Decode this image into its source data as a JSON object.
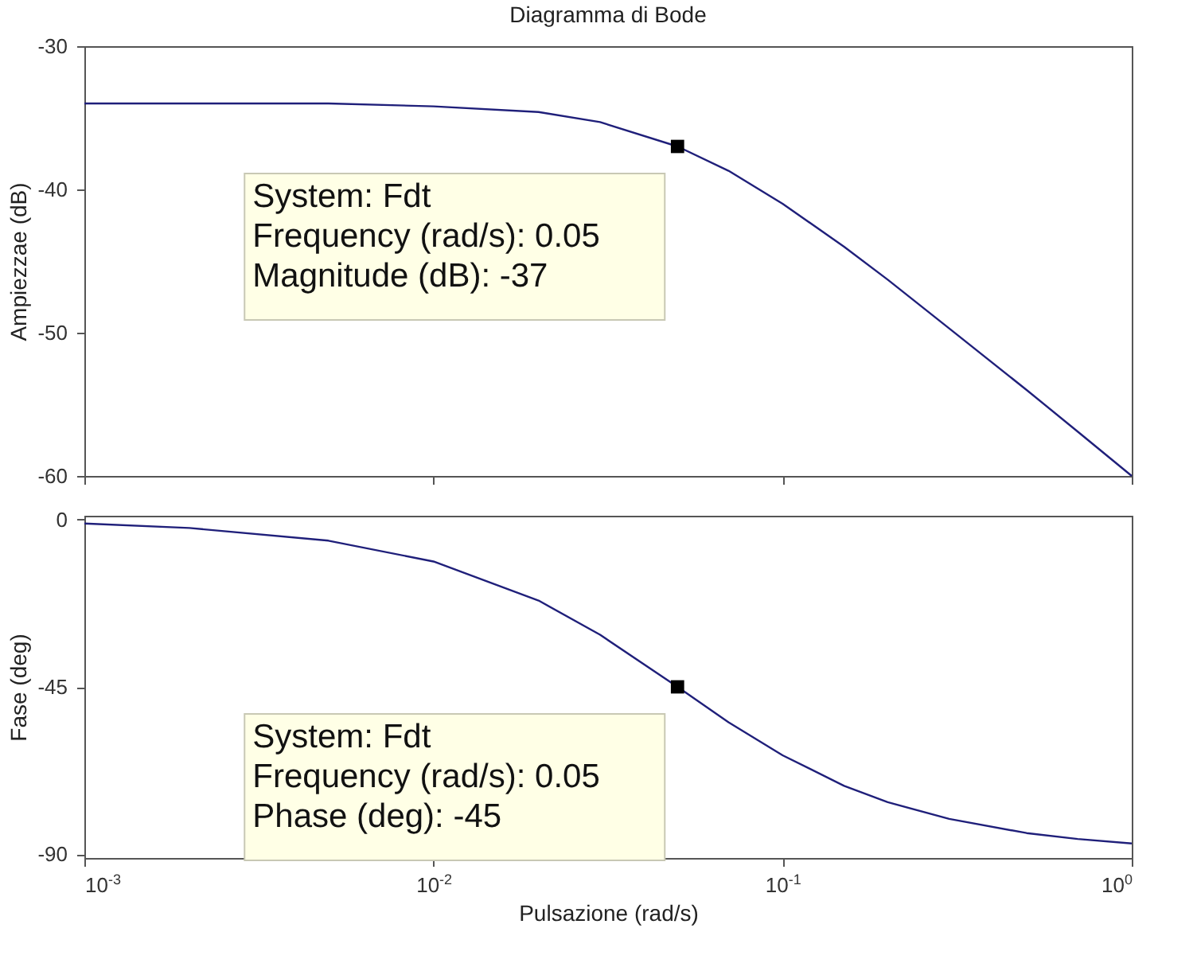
{
  "chart_data": [
    {
      "type": "line",
      "title": "Diagramma di Bode",
      "ylabel": "Ampiezzae (dB)",
      "log": "x",
      "grid": false,
      "marker": "none",
      "line_style": "solid",
      "tick_labels": "y",
      "x": [
        0.001,
        0.002,
        0.005,
        0.01,
        0.02,
        0.03,
        0.05,
        0.07,
        0.1,
        0.15,
        0.2,
        0.3,
        0.5,
        0.7,
        1
      ],
      "series": [
        {
          "color": "#1f1f7a",
          "values": [
            -34,
            -34,
            -34,
            -34.2,
            -34.6,
            -35.3,
            -37,
            -38.7,
            -41,
            -44,
            -46.3,
            -49.7,
            -54,
            -56.9,
            -60
          ]
        }
      ],
      "xlim": [
        0.001,
        1
      ],
      "xticks": [
        0.001,
        0.01,
        0.1,
        1
      ],
      "ylim": [
        -60,
        -30
      ],
      "yticks": [
        -60,
        -50,
        -40,
        -30
      ],
      "annotations": [
        {
          "text": "System: Fdt\nFrequency (rad/s): 0.05\nMagnitude (dB): -37",
          "x": 0.05,
          "y": -37
        }
      ]
    },
    {
      "type": "line",
      "xlabel": "Pulsazione  (rad/s)",
      "ylabel": "Fase (deg)",
      "log": "x",
      "grid": false,
      "marker": "none",
      "line_style": "solid",
      "x": [
        0.001,
        0.002,
        0.005,
        0.01,
        0.02,
        0.03,
        0.05,
        0.07,
        0.1,
        0.15,
        0.2,
        0.3,
        0.5,
        0.7,
        1
      ],
      "series": [
        {
          "color": "#1f1f7a",
          "values": [
            -1.1,
            -2.3,
            -5.7,
            -11.3,
            -21.8,
            -31,
            -45,
            -54.5,
            -63.4,
            -71.6,
            -76,
            -80.5,
            -84.3,
            -85.9,
            -87.1
          ]
        }
      ],
      "xlim": [
        0.001,
        1
      ],
      "xticks": [
        {
          "value": 0.001,
          "label": "10$^{-3}$"
        },
        {
          "value": 0.01,
          "label": "10$^{-2}$"
        },
        {
          "value": 0.1,
          "label": "10$^{-1}$"
        },
        {
          "value": 1,
          "label": "10$^{0}$"
        }
      ],
      "ylim": [
        -91,
        1
      ],
      "yticks": [
        -90,
        -45,
        0
      ],
      "annotations": [
        {
          "text": "System: Fdt\nFrequency (rad/s): 0.05\nPhase (deg): -45",
          "x": 0.05,
          "y": -45
        }
      ]
    }
  ]
}
